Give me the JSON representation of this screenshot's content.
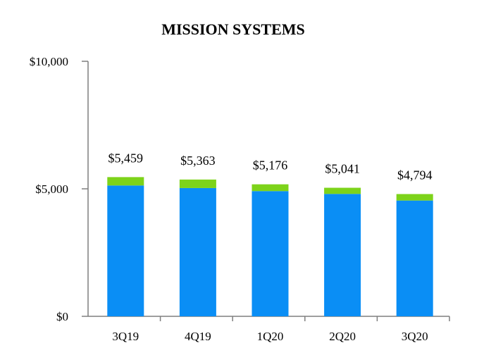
{
  "chart_data": {
    "type": "bar",
    "stacked": true,
    "title": "MISSION SYSTEMS",
    "xlabel": "",
    "ylabel": "",
    "categories": [
      "3Q19",
      "4Q19",
      "1Q20",
      "2Q20",
      "3Q20"
    ],
    "totals": [
      "$5,459",
      "$5,363",
      "$5,176",
      "$5,041",
      "$4,794"
    ],
    "total_values": [
      5459,
      5363,
      5176,
      5041,
      4794
    ],
    "series": [
      {
        "values": [
          5130,
          5030,
          4910,
          4800,
          4540
        ],
        "color": "#0A8EF5"
      },
      {
        "values": [
          329,
          333,
          266,
          241,
          254
        ],
        "color": "#7DD31A"
      }
    ],
    "ylim": [
      0,
      10000
    ],
    "yticks": [
      {
        "value": 0,
        "label": "$0"
      },
      {
        "value": 5000,
        "label": "$5,000"
      },
      {
        "value": 10000,
        "label": "$10,000"
      }
    ],
    "grid": false,
    "axis_color": "#7f7f7f"
  }
}
